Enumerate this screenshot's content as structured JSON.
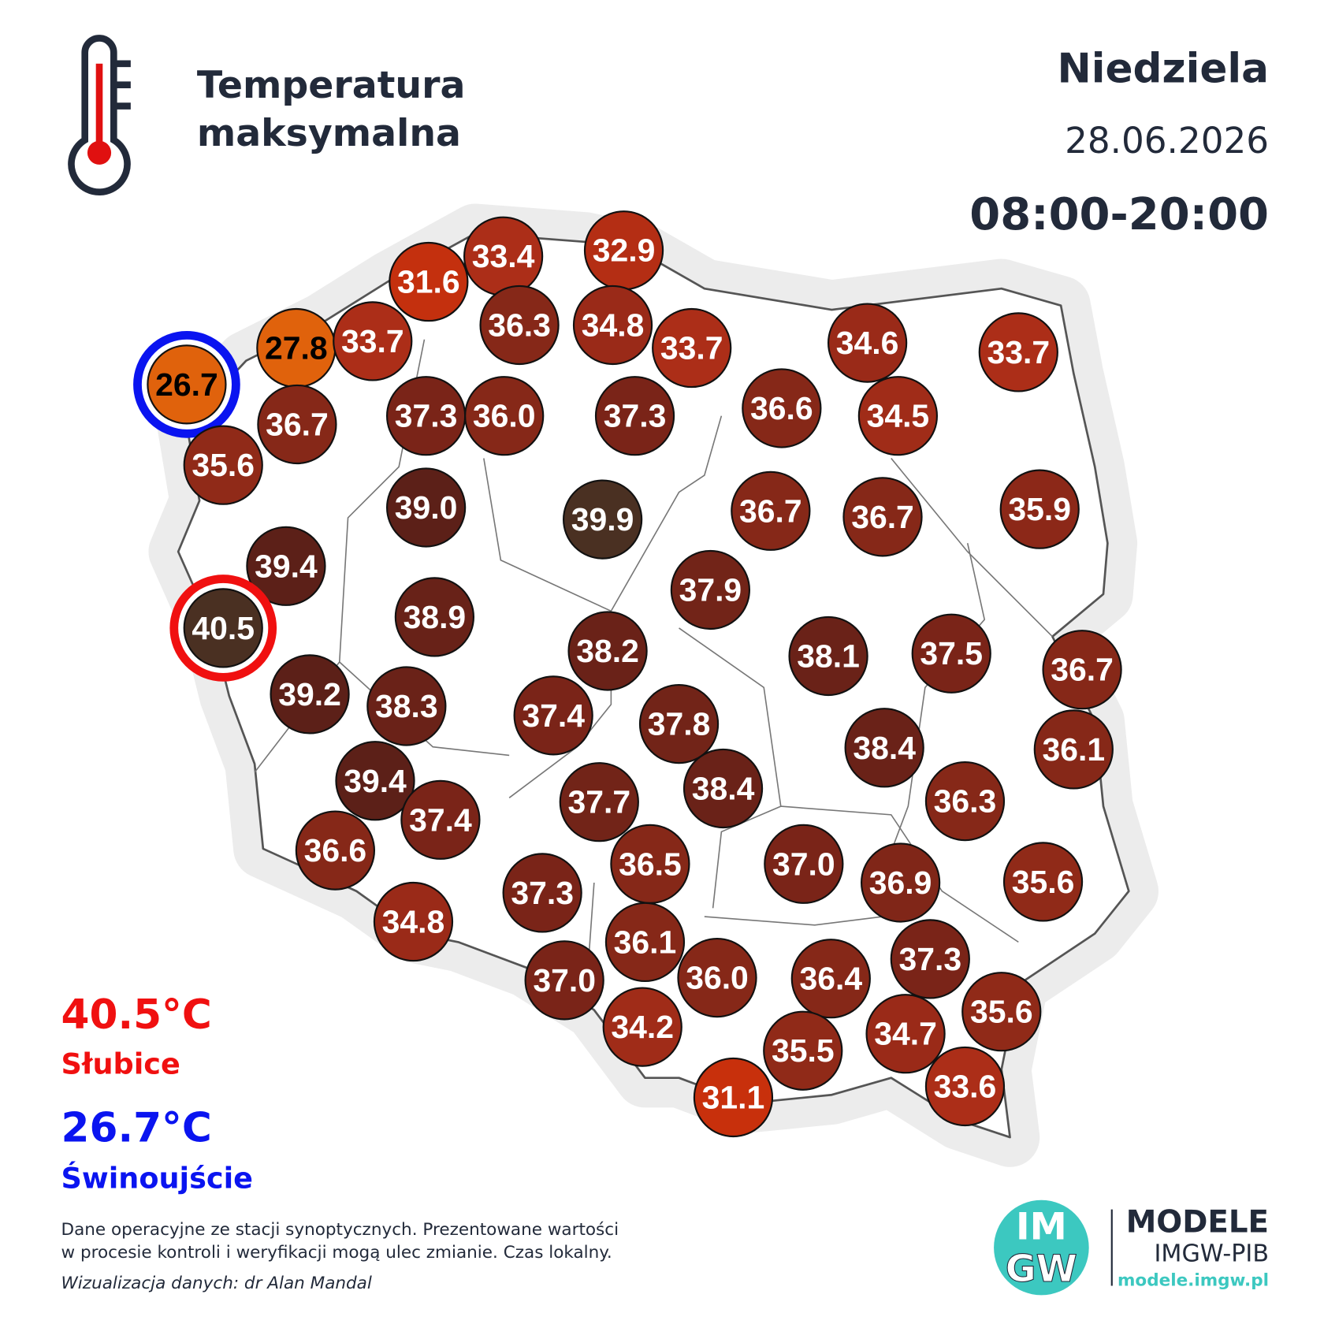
{
  "header": {
    "title_lines": [
      "Temperatura",
      "maksymalna"
    ],
    "day": "Niedziela",
    "date": "28.06.2026",
    "time": "08:00-20:00"
  },
  "extremes": {
    "max": {
      "value": "40.5°C",
      "place": "Słubice"
    },
    "min": {
      "value": "26.7°C",
      "place": "Świnoujście"
    }
  },
  "stations": [
    {
      "value": 26.7,
      "color": "#e0620c",
      "label_color": "#000",
      "ring": "#0a14f0"
    },
    {
      "value": 27.8,
      "color": "#e0620c",
      "label_color": "#000"
    },
    {
      "value": 33.7,
      "color": "#ac2e18",
      "label_color": "#fff"
    },
    {
      "value": 31.6,
      "color": "#c4300e",
      "label_color": "#fff"
    },
    {
      "value": 33.4,
      "color": "#ac2e18",
      "label_color": "#fff"
    },
    {
      "value": 32.9,
      "color": "#b42e14",
      "label_color": "#fff"
    },
    {
      "value": 36.3,
      "color": "#862818",
      "label_color": "#fff"
    },
    {
      "value": 34.8,
      "color": "#9a2a18",
      "label_color": "#fff"
    },
    {
      "value": 33.7,
      "color": "#ac2e18",
      "label_color": "#fff"
    },
    {
      "value": 34.6,
      "color": "#9a2a18",
      "label_color": "#fff"
    },
    {
      "value": 33.7,
      "color": "#ac2e18",
      "label_color": "#fff"
    },
    {
      "value": 36.7,
      "color": "#862818",
      "label_color": "#fff"
    },
    {
      "value": 35.6,
      "color": "#902a18",
      "label_color": "#fff"
    },
    {
      "value": 37.3,
      "color": "#7a2418",
      "label_color": "#fff"
    },
    {
      "value": 36,
      "label": "36.0",
      "color": "#862818",
      "label_color": "#fff"
    },
    {
      "value": 37.3,
      "color": "#7a2418",
      "label_color": "#fff"
    },
    {
      "value": 36.6,
      "color": "#862818",
      "label_color": "#fff"
    },
    {
      "value": 34.5,
      "color": "#a02c18",
      "label_color": "#fff"
    },
    {
      "value": 39,
      "label": "39.0",
      "color": "#5c2018",
      "label_color": "#fff"
    },
    {
      "value": 39.9,
      "color": "#4a3022",
      "label_color": "#fff"
    },
    {
      "value": 36.7,
      "color": "#862818",
      "label_color": "#fff"
    },
    {
      "value": 36.7,
      "color": "#862818",
      "label_color": "#fff"
    },
    {
      "value": 35.9,
      "color": "#8c2818",
      "label_color": "#fff"
    },
    {
      "value": 39.4,
      "color": "#5c2018",
      "label_color": "#fff"
    },
    {
      "value": 40.5,
      "color": "#4a3022",
      "label_color": "#fff",
      "ring": "#f01010"
    },
    {
      "value": 38.9,
      "color": "#682218",
      "label_color": "#fff"
    },
    {
      "value": 37.9,
      "color": "#722418",
      "label_color": "#fff"
    },
    {
      "value": 38.2,
      "color": "#6a2218",
      "label_color": "#fff"
    },
    {
      "value": 38.1,
      "color": "#6a2218",
      "label_color": "#fff"
    },
    {
      "value": 37.5,
      "color": "#7a2418",
      "label_color": "#fff"
    },
    {
      "value": 36.7,
      "color": "#862818",
      "label_color": "#fff"
    },
    {
      "value": 39.2,
      "color": "#5c2018",
      "label_color": "#fff"
    },
    {
      "value": 38.3,
      "color": "#6a2218",
      "label_color": "#fff"
    },
    {
      "value": 37.4,
      "color": "#7a2418",
      "label_color": "#fff"
    },
    {
      "value": 37.8,
      "color": "#722418",
      "label_color": "#fff"
    },
    {
      "value": 38.4,
      "color": "#6a2218",
      "label_color": "#fff"
    },
    {
      "value": 36.1,
      "color": "#862818",
      "label_color": "#fff"
    },
    {
      "value": 39.4,
      "color": "#5c2018",
      "label_color": "#fff"
    },
    {
      "value": 37.4,
      "color": "#7a2418",
      "label_color": "#fff"
    },
    {
      "value": 37.7,
      "color": "#722418",
      "label_color": "#fff"
    },
    {
      "value": 38.4,
      "color": "#6a2218",
      "label_color": "#fff"
    },
    {
      "value": 36.3,
      "color": "#862818",
      "label_color": "#fff"
    },
    {
      "value": 36.6,
      "color": "#862818",
      "label_color": "#fff"
    },
    {
      "value": 36.5,
      "color": "#862818",
      "label_color": "#fff"
    },
    {
      "value": 37,
      "label": "37.0",
      "color": "#7a2418",
      "label_color": "#fff"
    },
    {
      "value": 36.9,
      "color": "#802618",
      "label_color": "#fff"
    },
    {
      "value": 35.6,
      "color": "#902a18",
      "label_color": "#fff"
    },
    {
      "value": 37.3,
      "color": "#7a2418",
      "label_color": "#fff"
    },
    {
      "value": 34.8,
      "color": "#9a2a18",
      "label_color": "#fff"
    },
    {
      "value": 36.1,
      "color": "#862818",
      "label_color": "#fff"
    },
    {
      "value": 36,
      "label": "36.0",
      "color": "#862818",
      "label_color": "#fff"
    },
    {
      "value": 36.4,
      "color": "#862818",
      "label_color": "#fff"
    },
    {
      "value": 37.3,
      "color": "#7a2418",
      "label_color": "#fff"
    },
    {
      "value": 37,
      "label": "37.0",
      "color": "#7a2418",
      "label_color": "#fff"
    },
    {
      "value": 35.6,
      "color": "#902a18",
      "label_color": "#fff"
    },
    {
      "value": 34.2,
      "color": "#a02c18",
      "label_color": "#fff"
    },
    {
      "value": 35.5,
      "color": "#902a18",
      "label_color": "#fff"
    },
    {
      "value": 34.7,
      "color": "#9a2a18",
      "label_color": "#fff"
    },
    {
      "value": 33.6,
      "color": "#ac2e18",
      "label_color": "#fff"
    },
    {
      "value": 31.1,
      "color": "#c8300c",
      "label_color": "#fff"
    }
  ],
  "footer": {
    "note_lines": [
      "Dane operacyjne ze stacji synoptycznych. Prezentowane wartości",
      "w procesie kontroli i weryfikacji mogą ulec zmianie. Czas lokalny."
    ],
    "credit": "Wizualizacja danych: dr Alan Mandal"
  },
  "logo": {
    "top": "IM",
    "bottom": "GW",
    "brand": "MODELE",
    "org": "IMGW-PIB",
    "url": "modele.imgw.pl"
  }
}
